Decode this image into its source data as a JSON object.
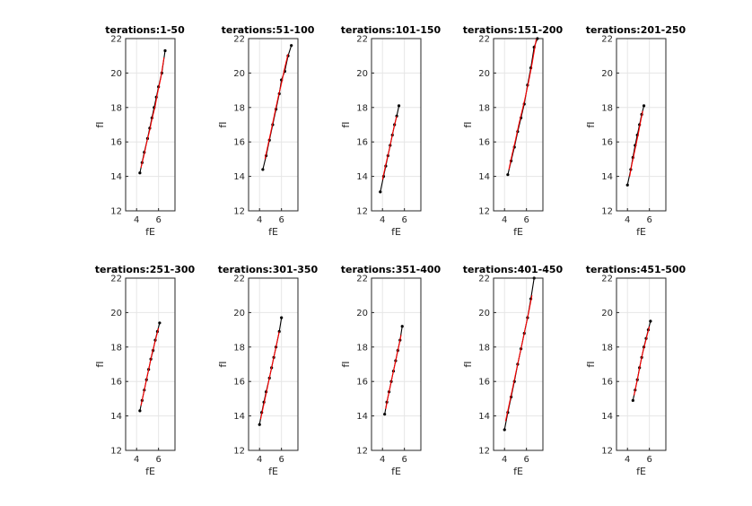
{
  "chart_data": [
    {
      "type": "line",
      "title": "terations:1-50",
      "xlabel": "fE",
      "ylabel": "fI",
      "xlim": [
        3,
        7.5
      ],
      "ylim": [
        12,
        22
      ],
      "xticks": [
        4,
        6
      ],
      "yticks": [
        12,
        14,
        16,
        18,
        20,
        22
      ],
      "grid": true,
      "series": [
        {
          "color": "#000000",
          "marker": "dot",
          "x": [
            4.3,
            4.5,
            4.7,
            5.0,
            5.2,
            5.4,
            5.6,
            5.8,
            6.0,
            6.3,
            6.6
          ],
          "y": [
            14.2,
            14.8,
            15.4,
            16.2,
            16.8,
            17.4,
            18.0,
            18.6,
            19.2,
            20.0,
            21.3
          ]
        },
        {
          "color": "#ff0000",
          "marker": "none",
          "x": [
            4.4,
            4.7,
            4.9,
            5.2,
            5.4,
            5.7,
            5.9,
            6.2,
            6.5
          ],
          "y": [
            14.5,
            15.3,
            15.9,
            16.7,
            17.3,
            18.1,
            18.8,
            19.7,
            20.9
          ]
        }
      ]
    },
    {
      "type": "line",
      "title": "terations:51-100",
      "xlabel": "fE",
      "ylabel": "fI",
      "xlim": [
        3,
        7.5
      ],
      "ylim": [
        12,
        22
      ],
      "xticks": [
        4,
        6
      ],
      "yticks": [
        12,
        14,
        16,
        18,
        20,
        22
      ],
      "grid": true,
      "series": [
        {
          "color": "#000000",
          "marker": "dot",
          "x": [
            4.3,
            4.6,
            4.9,
            5.2,
            5.5,
            5.8,
            6.0,
            6.3,
            6.6,
            6.9
          ],
          "y": [
            14.4,
            15.2,
            16.1,
            17.0,
            17.9,
            18.8,
            19.6,
            20.1,
            21.0,
            21.6
          ]
        },
        {
          "color": "#ff0000",
          "marker": "none",
          "x": [
            4.5,
            4.8,
            5.1,
            5.4,
            5.7,
            6.0,
            6.3,
            6.6
          ],
          "y": [
            15.0,
            15.9,
            16.8,
            17.7,
            18.6,
            19.4,
            20.3,
            21.1
          ]
        }
      ]
    },
    {
      "type": "line",
      "title": "terations:101-150",
      "xlabel": "fE",
      "ylabel": "fI",
      "xlim": [
        3,
        7.5
      ],
      "ylim": [
        12,
        22
      ],
      "xticks": [
        4,
        6
      ],
      "yticks": [
        12,
        14,
        16,
        18,
        20,
        22
      ],
      "grid": true,
      "series": [
        {
          "color": "#000000",
          "marker": "dot",
          "x": [
            3.8,
            4.1,
            4.3,
            4.5,
            4.7,
            4.9,
            5.1,
            5.3,
            5.5
          ],
          "y": [
            13.1,
            14.0,
            14.6,
            15.2,
            15.8,
            16.4,
            17.0,
            17.5,
            18.1
          ]
        },
        {
          "color": "#ff0000",
          "marker": "none",
          "x": [
            4.0,
            4.3,
            4.6,
            4.8,
            5.0,
            5.3
          ],
          "y": [
            13.8,
            14.7,
            15.5,
            16.1,
            16.7,
            17.5
          ]
        }
      ]
    },
    {
      "type": "line",
      "title": "terations:151-200",
      "xlabel": "fE",
      "ylabel": "fI",
      "xlim": [
        3,
        7.5
      ],
      "ylim": [
        12,
        22
      ],
      "xticks": [
        4,
        6
      ],
      "yticks": [
        12,
        14,
        16,
        18,
        20,
        22
      ],
      "grid": true,
      "series": [
        {
          "color": "#000000",
          "marker": "dot",
          "x": [
            4.3,
            4.6,
            4.9,
            5.2,
            5.5,
            5.8,
            6.1,
            6.4,
            6.7,
            7.0
          ],
          "y": [
            14.1,
            14.9,
            15.7,
            16.6,
            17.4,
            18.2,
            19.3,
            20.3,
            21.5,
            22.0
          ]
        },
        {
          "color": "#ff0000",
          "marker": "none",
          "x": [
            4.4,
            4.7,
            5.0,
            5.3,
            5.6,
            5.9,
            6.2,
            6.5,
            6.9
          ],
          "y": [
            14.4,
            15.3,
            16.1,
            17.0,
            17.8,
            18.6,
            19.5,
            20.5,
            22.0
          ]
        }
      ]
    },
    {
      "type": "line",
      "title": "terations:201-250",
      "xlabel": "fE",
      "ylabel": "fI",
      "xlim": [
        3,
        7.5
      ],
      "ylim": [
        12,
        22
      ],
      "xticks": [
        4,
        6
      ],
      "yticks": [
        12,
        14,
        16,
        18,
        20,
        22
      ],
      "grid": true,
      "series": [
        {
          "color": "#000000",
          "marker": "dot",
          "x": [
            4.0,
            4.3,
            4.5,
            4.7,
            4.9,
            5.1,
            5.3,
            5.5
          ],
          "y": [
            13.5,
            14.4,
            15.1,
            15.8,
            16.4,
            17.0,
            17.6,
            18.1
          ]
        },
        {
          "color": "#ff0000",
          "marker": "none",
          "x": [
            4.2,
            4.4,
            4.6,
            4.8,
            5.0,
            5.2,
            5.4
          ],
          "y": [
            14.0,
            14.7,
            15.3,
            15.9,
            16.5,
            17.2,
            17.8
          ]
        }
      ]
    },
    {
      "type": "line",
      "title": "terations:251-300",
      "xlabel": "fE",
      "ylabel": "fI",
      "xlim": [
        3,
        7.5
      ],
      "ylim": [
        12,
        22
      ],
      "xticks": [
        4,
        6
      ],
      "yticks": [
        12,
        14,
        16,
        18,
        20,
        22
      ],
      "grid": true,
      "series": [
        {
          "color": "#000000",
          "marker": "dot",
          "x": [
            4.3,
            4.5,
            4.7,
            4.9,
            5.1,
            5.3,
            5.5,
            5.7,
            5.9,
            6.1
          ],
          "y": [
            14.3,
            14.9,
            15.5,
            16.1,
            16.7,
            17.3,
            17.8,
            18.4,
            18.9,
            19.4
          ]
        },
        {
          "color": "#ff0000",
          "marker": "none",
          "x": [
            4.4,
            4.6,
            4.8,
            5.0,
            5.2,
            5.4,
            5.6,
            5.8,
            6.0
          ],
          "y": [
            14.6,
            15.2,
            15.8,
            16.4,
            17.0,
            17.6,
            18.1,
            18.6,
            19.1
          ]
        }
      ]
    },
    {
      "type": "line",
      "title": "terations:301-350",
      "xlabel": "fE",
      "ylabel": "fI",
      "xlim": [
        3,
        7.5
      ],
      "ylim": [
        12,
        22
      ],
      "xticks": [
        4,
        6
      ],
      "yticks": [
        12,
        14,
        16,
        18,
        20,
        22
      ],
      "grid": true,
      "series": [
        {
          "color": "#000000",
          "marker": "dot",
          "x": [
            4.0,
            4.2,
            4.4,
            4.6,
            4.9,
            5.1,
            5.3,
            5.5,
            5.8,
            6.0
          ],
          "y": [
            13.5,
            14.2,
            14.8,
            15.4,
            16.2,
            16.8,
            17.4,
            18.0,
            18.9,
            19.7
          ]
        },
        {
          "color": "#ff0000",
          "marker": "none",
          "x": [
            4.1,
            4.3,
            4.6,
            4.8,
            5.0,
            5.3,
            5.5,
            5.8
          ],
          "y": [
            13.8,
            14.4,
            15.3,
            15.9,
            16.5,
            17.4,
            18.0,
            18.9
          ]
        }
      ]
    },
    {
      "type": "line",
      "title": "terations:351-400",
      "xlabel": "fE",
      "ylabel": "fI",
      "xlim": [
        3,
        7.5
      ],
      "ylim": [
        12,
        22
      ],
      "xticks": [
        4,
        6
      ],
      "yticks": [
        12,
        14,
        16,
        18,
        20,
        22
      ],
      "grid": true,
      "series": [
        {
          "color": "#000000",
          "marker": "dot",
          "x": [
            4.2,
            4.4,
            4.6,
            4.8,
            5.0,
            5.2,
            5.4,
            5.6,
            5.8
          ],
          "y": [
            14.1,
            14.8,
            15.4,
            16.0,
            16.6,
            17.2,
            17.8,
            18.4,
            19.2
          ]
        },
        {
          "color": "#ff0000",
          "marker": "none",
          "x": [
            4.3,
            4.5,
            4.7,
            4.9,
            5.1,
            5.3,
            5.5,
            5.7
          ],
          "y": [
            14.4,
            15.1,
            15.7,
            16.3,
            16.9,
            17.5,
            18.1,
            18.7
          ]
        }
      ]
    },
    {
      "type": "line",
      "title": "terations:401-450",
      "xlabel": "fE",
      "ylabel": "fI",
      "xlim": [
        3,
        7.5
      ],
      "ylim": [
        12,
        22
      ],
      "xticks": [
        4,
        6
      ],
      "yticks": [
        12,
        14,
        16,
        18,
        20,
        22
      ],
      "grid": true,
      "series": [
        {
          "color": "#000000",
          "marker": "dot",
          "x": [
            4.0,
            4.3,
            4.6,
            4.9,
            5.2,
            5.5,
            5.8,
            6.1,
            6.4,
            6.7
          ],
          "y": [
            13.2,
            14.2,
            15.1,
            16.0,
            17.0,
            17.9,
            18.8,
            19.7,
            20.8,
            22.0
          ]
        },
        {
          "color": "#ff0000",
          "marker": "none",
          "x": [
            4.1,
            4.4,
            4.7,
            5.0,
            5.3,
            5.6,
            5.9,
            6.2,
            6.5
          ],
          "y": [
            13.7,
            14.6,
            15.5,
            16.4,
            17.3,
            18.2,
            19.1,
            20.0,
            21.0
          ]
        }
      ]
    },
    {
      "type": "line",
      "title": "terations:451-500",
      "xlabel": "fE",
      "ylabel": "fI",
      "xlim": [
        3,
        7.5
      ],
      "ylim": [
        12,
        22
      ],
      "xticks": [
        4,
        6
      ],
      "yticks": [
        12,
        14,
        16,
        18,
        20,
        22
      ],
      "grid": true,
      "series": [
        {
          "color": "#000000",
          "marker": "dot",
          "x": [
            4.5,
            4.7,
            4.9,
            5.1,
            5.3,
            5.5,
            5.7,
            5.9,
            6.1
          ],
          "y": [
            14.9,
            15.5,
            16.1,
            16.8,
            17.4,
            18.0,
            18.5,
            19.0,
            19.5
          ]
        },
        {
          "color": "#ff0000",
          "marker": "none",
          "x": [
            4.6,
            4.8,
            5.0,
            5.2,
            5.4,
            5.6,
            5.8,
            6.0
          ],
          "y": [
            15.2,
            15.8,
            16.4,
            17.1,
            17.7,
            18.2,
            18.7,
            19.2
          ]
        }
      ]
    }
  ]
}
